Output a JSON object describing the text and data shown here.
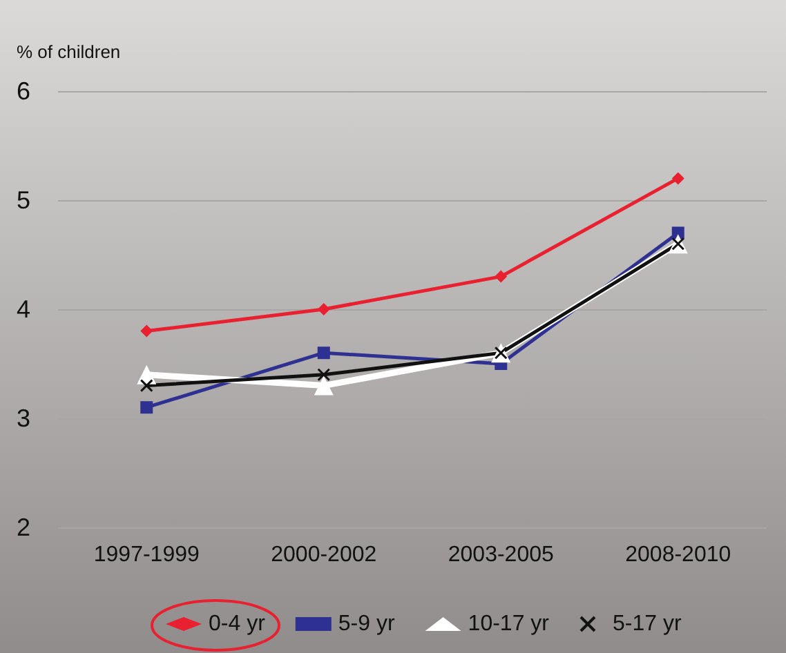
{
  "chart_data": {
    "type": "line",
    "ylabel": "% of children",
    "categories": [
      "1997-1999",
      "2000-2002",
      "2003-2005",
      "2008-2010"
    ],
    "series": [
      {
        "name": "0-4 yr",
        "color": "#e8202f",
        "marker": "diamond",
        "values": [
          3.8,
          4.0,
          4.3,
          5.2
        ]
      },
      {
        "name": "5-9 yr",
        "color": "#2e3192",
        "marker": "square",
        "values": [
          3.1,
          3.6,
          3.5,
          4.7
        ]
      },
      {
        "name": "10-17 yr",
        "color": "#ffffff",
        "marker": "triangle",
        "values": [
          3.4,
          3.3,
          3.6,
          4.6
        ]
      },
      {
        "name": "5-17 yr",
        "color": "#111111",
        "marker": "cross",
        "values": [
          3.3,
          3.4,
          3.6,
          4.6
        ]
      }
    ],
    "ylim": [
      2,
      6
    ],
    "yticks": [
      2,
      3,
      4,
      5,
      6
    ],
    "grid": "y",
    "legend": "bottom",
    "line_style": "solid"
  }
}
